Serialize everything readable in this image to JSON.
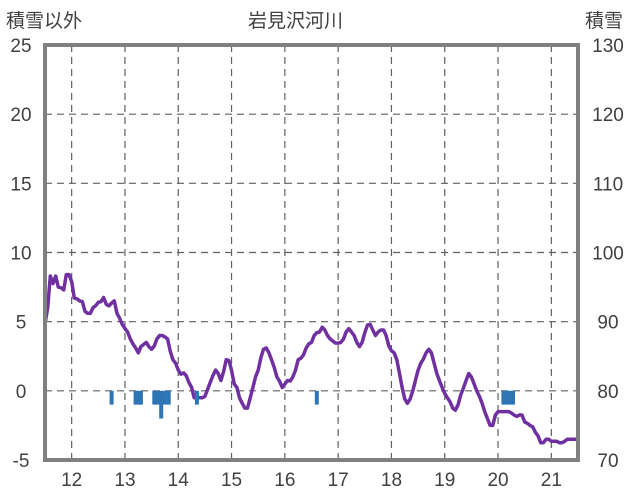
{
  "chart_data": {
    "type": "line+bar",
    "title": "岩見沢河川",
    "ylabel_left": "積雪以外",
    "ylabel_right": "積雪",
    "x_ticks": [
      "12",
      "13",
      "14",
      "15",
      "16",
      "17",
      "18",
      "19",
      "20",
      "21"
    ],
    "xlim": [
      11.5,
      21.5
    ],
    "y_left_ticks": [
      "25",
      "20",
      "15",
      "10",
      "5",
      "0",
      "-5"
    ],
    "y_left_lim": [
      -5,
      25
    ],
    "y_right_ticks": [
      "130",
      "120",
      "110",
      "100",
      "90",
      "80",
      "70"
    ],
    "y_right_lim": [
      70,
      130
    ],
    "grid": "dashed",
    "series": [
      {
        "kind": "line",
        "axis": "right",
        "color": "#7030a0",
        "points": [
          [
            11.5,
            89.7
          ],
          [
            11.55,
            92.0
          ],
          [
            11.6,
            96.6
          ],
          [
            11.65,
            95.5
          ],
          [
            11.7,
            96.6
          ],
          [
            11.75,
            95.0
          ],
          [
            11.8,
            94.9
          ],
          [
            11.85,
            94.6
          ],
          [
            11.9,
            96.8
          ],
          [
            11.95,
            96.8
          ],
          [
            12.0,
            95.8
          ],
          [
            12.05,
            93.4
          ],
          [
            12.1,
            93.3
          ],
          [
            12.15,
            93.0
          ],
          [
            12.2,
            92.9
          ],
          [
            12.25,
            91.5
          ],
          [
            12.3,
            91.2
          ],
          [
            12.35,
            91.2
          ],
          [
            12.4,
            92.0
          ],
          [
            12.45,
            92.3
          ],
          [
            12.5,
            92.8
          ],
          [
            12.55,
            92.9
          ],
          [
            12.6,
            93.5
          ],
          [
            12.65,
            92.5
          ],
          [
            12.7,
            92.3
          ],
          [
            12.75,
            92.7
          ],
          [
            12.8,
            93.0
          ],
          [
            12.85,
            91.2
          ],
          [
            12.9,
            90.5
          ],
          [
            12.95,
            89.6
          ],
          [
            13.0,
            89.0
          ],
          [
            13.05,
            88.5
          ],
          [
            13.1,
            87.5
          ],
          [
            13.15,
            86.8
          ],
          [
            13.2,
            86.2
          ],
          [
            13.25,
            85.5
          ],
          [
            13.3,
            86.4
          ],
          [
            13.35,
            86.7
          ],
          [
            13.4,
            87.0
          ],
          [
            13.45,
            86.4
          ],
          [
            13.5,
            86.0
          ],
          [
            13.55,
            86.5
          ],
          [
            13.6,
            87.5
          ],
          [
            13.65,
            88.0
          ],
          [
            13.7,
            88.0
          ],
          [
            13.75,
            87.8
          ],
          [
            13.8,
            87.5
          ],
          [
            13.85,
            85.7
          ],
          [
            13.9,
            84.5
          ],
          [
            13.95,
            84.0
          ],
          [
            14.0,
            83.0
          ],
          [
            14.05,
            82.4
          ],
          [
            14.1,
            82.6
          ],
          [
            14.15,
            82.2
          ],
          [
            14.2,
            81.2
          ],
          [
            14.25,
            80.5
          ],
          [
            14.3,
            79.0
          ],
          [
            14.35,
            79.0
          ],
          [
            14.4,
            79.0
          ],
          [
            14.45,
            79.0
          ],
          [
            14.5,
            79.2
          ],
          [
            14.55,
            80.2
          ],
          [
            14.6,
            81.2
          ],
          [
            14.65,
            82.2
          ],
          [
            14.7,
            83.0
          ],
          [
            14.75,
            82.5
          ],
          [
            14.8,
            81.5
          ],
          [
            14.85,
            82.8
          ],
          [
            14.9,
            84.5
          ],
          [
            14.95,
            84.4
          ],
          [
            15.0,
            83.0
          ],
          [
            15.05,
            81.0
          ],
          [
            15.1,
            80.5
          ],
          [
            15.15,
            79.0
          ],
          [
            15.2,
            78.2
          ],
          [
            15.25,
            77.5
          ],
          [
            15.3,
            77.5
          ],
          [
            15.35,
            79.0
          ],
          [
            15.4,
            80.5
          ],
          [
            15.45,
            82.0
          ],
          [
            15.5,
            83.0
          ],
          [
            15.55,
            84.8
          ],
          [
            15.6,
            86.0
          ],
          [
            15.65,
            86.2
          ],
          [
            15.7,
            85.5
          ],
          [
            15.75,
            84.5
          ],
          [
            15.8,
            83.4
          ],
          [
            15.85,
            82.0
          ],
          [
            15.9,
            81.4
          ],
          [
            15.95,
            80.5
          ],
          [
            16.0,
            81.0
          ],
          [
            16.05,
            81.5
          ],
          [
            16.1,
            81.4
          ],
          [
            16.15,
            82.0
          ],
          [
            16.2,
            83.0
          ],
          [
            16.25,
            84.5
          ],
          [
            16.3,
            84.7
          ],
          [
            16.35,
            85.2
          ],
          [
            16.4,
            86.2
          ],
          [
            16.45,
            86.8
          ],
          [
            16.5,
            87.0
          ],
          [
            16.55,
            88.0
          ],
          [
            16.6,
            88.4
          ],
          [
            16.65,
            88.5
          ],
          [
            16.7,
            89.2
          ],
          [
            16.75,
            88.8
          ],
          [
            16.8,
            88.0
          ],
          [
            16.85,
            87.5
          ],
          [
            16.9,
            87.2
          ],
          [
            16.95,
            86.9
          ],
          [
            17.0,
            86.9
          ],
          [
            17.05,
            87.0
          ],
          [
            17.1,
            87.5
          ],
          [
            17.15,
            88.5
          ],
          [
            17.2,
            89.0
          ],
          [
            17.25,
            88.5
          ],
          [
            17.3,
            88.0
          ],
          [
            17.35,
            87.0
          ],
          [
            17.4,
            86.4
          ],
          [
            17.45,
            87.0
          ],
          [
            17.5,
            88.4
          ],
          [
            17.55,
            89.5
          ],
          [
            17.6,
            89.6
          ],
          [
            17.65,
            88.8
          ],
          [
            17.7,
            88.0
          ],
          [
            17.75,
            88.5
          ],
          [
            17.8,
            88.8
          ],
          [
            17.85,
            88.8
          ],
          [
            17.9,
            88.0
          ],
          [
            17.95,
            86.5
          ],
          [
            18.0,
            85.8
          ],
          [
            18.05,
            85.5
          ],
          [
            18.1,
            84.5
          ],
          [
            18.15,
            82.6
          ],
          [
            18.2,
            80.5
          ],
          [
            18.25,
            78.8
          ],
          [
            18.3,
            78.2
          ],
          [
            18.35,
            78.8
          ],
          [
            18.4,
            80.0
          ],
          [
            18.45,
            81.5
          ],
          [
            18.5,
            83.0
          ],
          [
            18.55,
            84.0
          ],
          [
            18.6,
            84.6
          ],
          [
            18.65,
            85.5
          ],
          [
            18.7,
            86.0
          ],
          [
            18.75,
            85.5
          ],
          [
            18.8,
            84.0
          ],
          [
            18.85,
            82.5
          ],
          [
            18.9,
            81.5
          ],
          [
            18.95,
            80.5
          ],
          [
            19.0,
            79.6
          ],
          [
            19.05,
            79.0
          ],
          [
            19.1,
            78.4
          ],
          [
            19.15,
            77.5
          ],
          [
            19.2,
            77.2
          ],
          [
            19.25,
            78.0
          ],
          [
            19.3,
            79.4
          ],
          [
            19.35,
            80.4
          ],
          [
            19.4,
            81.5
          ],
          [
            19.45,
            82.5
          ],
          [
            19.5,
            82.0
          ],
          [
            19.55,
            81.0
          ],
          [
            19.6,
            80.0
          ],
          [
            19.65,
            79.2
          ],
          [
            19.7,
            78.2
          ],
          [
            19.75,
            77.0
          ],
          [
            19.8,
            76.0
          ],
          [
            19.85,
            75.0
          ],
          [
            19.9,
            75.0
          ],
          [
            19.95,
            76.5
          ],
          [
            20.0,
            77.0
          ],
          [
            20.05,
            77.0
          ],
          [
            20.1,
            77.0
          ],
          [
            20.15,
            77.0
          ],
          [
            20.2,
            77.0
          ],
          [
            20.25,
            76.8
          ],
          [
            20.3,
            76.5
          ],
          [
            20.35,
            76.3
          ],
          [
            20.4,
            76.5
          ],
          [
            20.45,
            76.5
          ],
          [
            20.5,
            75.5
          ],
          [
            20.55,
            75.3
          ],
          [
            20.6,
            75.0
          ],
          [
            20.65,
            74.8
          ],
          [
            20.7,
            74.0
          ],
          [
            20.75,
            73.5
          ],
          [
            20.8,
            72.5
          ],
          [
            20.85,
            72.5
          ],
          [
            20.9,
            73.0
          ],
          [
            20.95,
            73.0
          ],
          [
            21.0,
            72.7
          ],
          [
            21.05,
            72.7
          ],
          [
            21.1,
            72.7
          ],
          [
            21.15,
            72.5
          ],
          [
            21.2,
            72.5
          ],
          [
            21.25,
            72.7
          ],
          [
            21.3,
            73.0
          ],
          [
            21.35,
            73.0
          ],
          [
            21.4,
            73.0
          ],
          [
            21.45,
            73.0
          ],
          [
            21.5,
            73.0
          ]
        ]
      },
      {
        "kind": "bar",
        "axis": "left",
        "color": "#2e75b6",
        "points": [
          [
            12.75,
            -1.0
          ],
          [
            13.2,
            -1.0
          ],
          [
            13.25,
            -1.0
          ],
          [
            13.3,
            -1.0
          ],
          [
            13.55,
            -1.0
          ],
          [
            13.62,
            -1.0
          ],
          [
            13.68,
            -2.0
          ],
          [
            13.75,
            -1.0
          ],
          [
            13.82,
            -1.0
          ],
          [
            14.35,
            -1.0
          ],
          [
            16.6,
            -1.0
          ],
          [
            20.1,
            -1.0
          ],
          [
            20.15,
            -1.0
          ],
          [
            20.22,
            -1.0
          ],
          [
            20.28,
            -1.0
          ]
        ]
      }
    ]
  }
}
